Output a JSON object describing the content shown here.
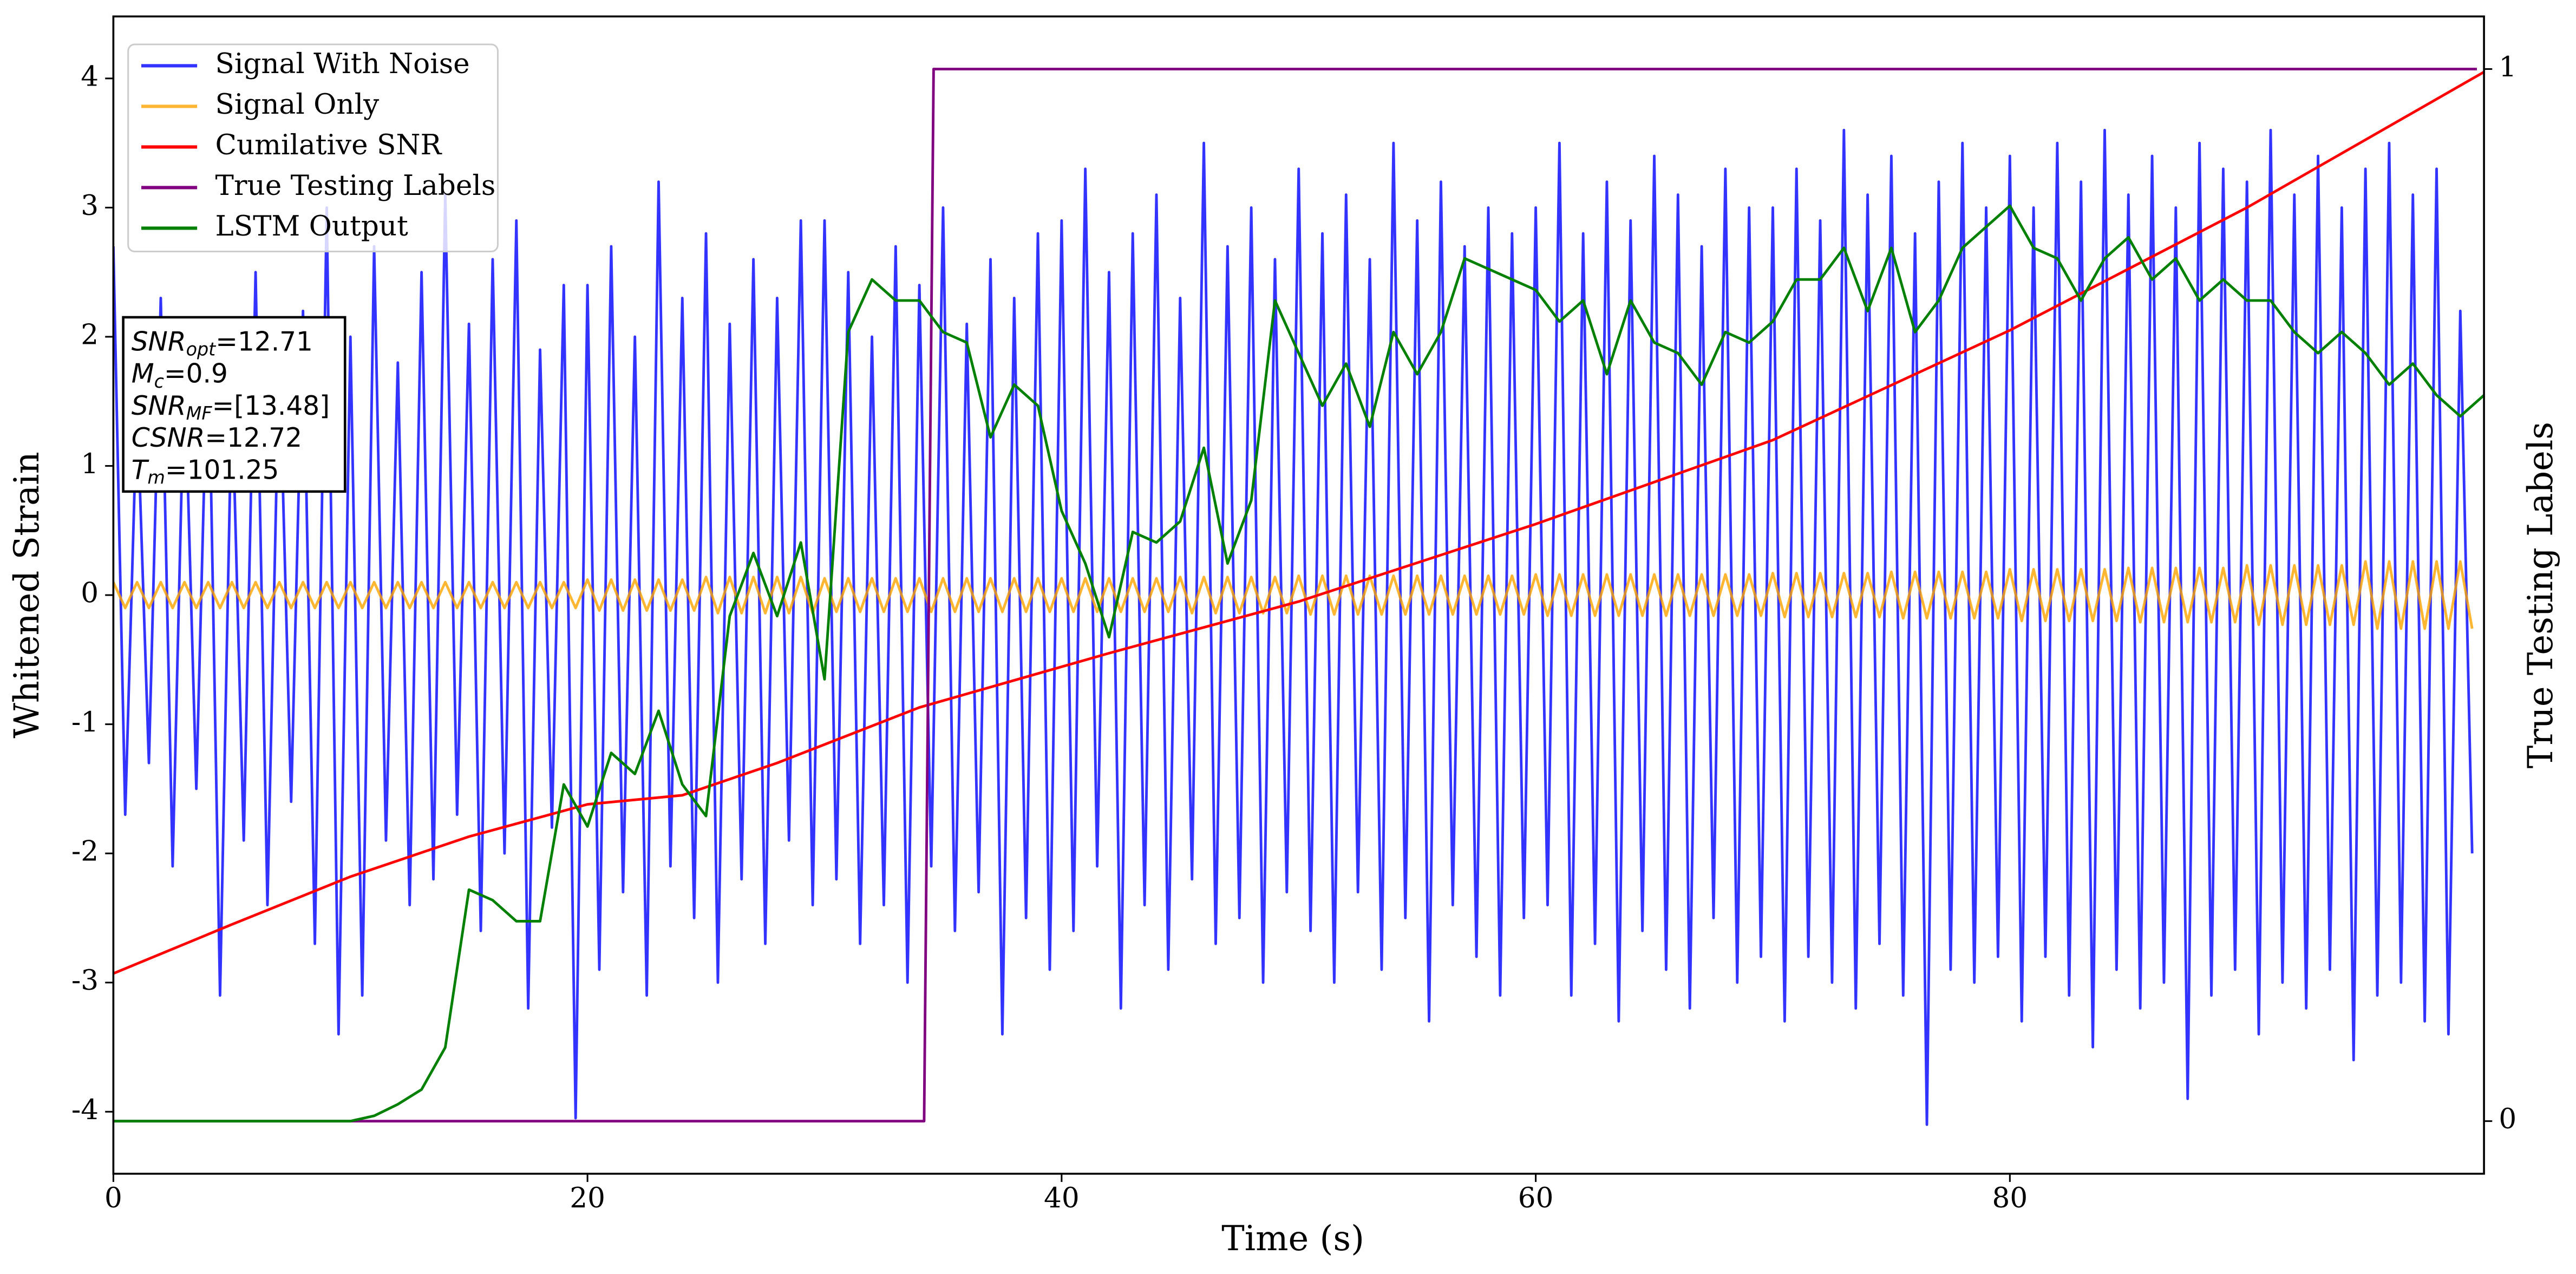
{
  "chart_data": {
    "type": "line",
    "xlabel": "Time (s)",
    "ylabel": "Whitened Strain",
    "y2label": "True Testing Labels",
    "xlim": [
      0,
      100
    ],
    "xticks": [
      0,
      20,
      40,
      60,
      80
    ],
    "ylim": [
      -4.48,
      4.48
    ],
    "yticks": [
      -4,
      -3,
      -2,
      -1,
      0,
      1,
      2,
      3,
      4
    ],
    "y2lim": [
      -0.05,
      1.05
    ],
    "y2ticks": [
      0,
      1
    ],
    "legend": "upper left",
    "annotation": [
      {
        "base": "SNR",
        "sub": "opt",
        "text": "=12.71"
      },
      {
        "base": "M",
        "sub": "c",
        "text": "=0.9"
      },
      {
        "base": "SNR",
        "sub": "MF",
        "text": "=[13.48]"
      },
      {
        "base": "CSNR",
        "text": "=12.72"
      },
      {
        "base": "T",
        "sub": "m",
        "text": "=101.25"
      }
    ],
    "x": [
      0,
      0.5,
      1,
      1.5,
      2,
      2.5,
      3,
      3.5,
      4,
      4.5,
      5,
      5.5,
      6,
      6.5,
      7,
      7.5,
      8,
      8.5,
      9,
      9.5,
      10,
      10.5,
      11,
      11.5,
      12,
      12.5,
      13,
      13.5,
      14,
      14.5,
      15,
      15.5,
      16,
      16.5,
      17,
      17.5,
      18,
      18.5,
      19,
      19.5,
      20,
      20.5,
      21,
      21.5,
      22,
      22.5,
      23,
      23.5,
      24,
      24.5,
      25,
      25.5,
      26,
      26.5,
      27,
      27.5,
      28,
      28.5,
      29,
      29.5,
      30,
      30.5,
      31,
      31.5,
      32,
      32.5,
      33,
      33.5,
      34,
      34.5,
      35,
      35.5,
      36,
      36.5,
      37,
      37.5,
      38,
      38.5,
      39,
      39.5,
      40,
      40.5,
      41,
      41.5,
      42,
      42.5,
      43,
      43.5,
      44,
      44.5,
      45,
      45.5,
      46,
      46.5,
      47,
      47.5,
      48,
      48.5,
      49,
      49.5,
      50,
      50.5,
      51,
      51.5,
      52,
      52.5,
      53,
      53.5,
      54,
      54.5,
      55,
      55.5,
      56,
      56.5,
      57,
      57.5,
      58,
      58.5,
      59,
      59.5,
      60,
      60.5,
      61,
      61.5,
      62,
      62.5,
      63,
      63.5,
      64,
      64.5,
      65,
      65.5,
      66,
      66.5,
      67,
      67.5,
      68,
      68.5,
      69,
      69.5,
      70,
      70.5,
      71,
      71.5,
      72,
      72.5,
      73,
      73.5,
      74,
      74.5,
      75,
      75.5,
      76,
      76.5,
      77,
      77.5,
      78,
      78.5,
      79,
      79.5,
      80,
      80.5,
      81,
      81.5,
      82,
      82.5,
      83,
      83.5,
      84,
      84.5,
      85,
      85.5,
      86,
      86.5,
      87,
      87.5,
      88,
      88.5,
      89,
      89.5,
      90,
      90.5,
      91,
      91.5,
      92,
      92.5,
      93,
      93.5,
      94,
      94.5,
      95,
      95.5,
      96,
      96.5,
      97,
      97.5,
      98,
      98.5,
      99,
      99.5
    ],
    "series": [
      {
        "name": "Signal With Noise",
        "color": "#0000ff",
        "alpha": 0.8,
        "values": [
          2.7,
          -1.7,
          1.5,
          -1.3,
          2.3,
          -2.1,
          1.8,
          -1.5,
          2.1,
          -3.1,
          1.6,
          -1.9,
          2.5,
          -2.4,
          1.9,
          -1.6,
          2.2,
          -2.7,
          3.0,
          -3.4,
          2.0,
          -3.1,
          2.7,
          -1.9,
          1.8,
          -2.4,
          2.5,
          -2.2,
          3.1,
          -1.7,
          2.1,
          -2.6,
          2.6,
          -2.0,
          2.9,
          -3.2,
          1.9,
          -1.8,
          2.4,
          -4.05,
          2.4,
          -2.9,
          2.7,
          -2.3,
          2.0,
          -3.1,
          3.2,
          -2.1,
          2.3,
          -2.5,
          2.8,
          -3.0,
          2.1,
          -2.2,
          2.6,
          -2.7,
          2.3,
          -1.9,
          2.9,
          -2.4,
          2.9,
          -2.2,
          2.5,
          -2.7,
          2.0,
          -2.4,
          2.7,
          -3.0,
          2.4,
          -2.1,
          3.0,
          -2.6,
          2.1,
          -2.3,
          2.6,
          -3.4,
          2.3,
          -2.5,
          2.8,
          -2.9,
          2.9,
          -2.6,
          3.3,
          -2.1,
          2.5,
          -3.2,
          2.8,
          -2.4,
          3.1,
          -2.9,
          2.3,
          -2.2,
          3.5,
          -2.7,
          2.7,
          -2.5,
          3.0,
          -3.0,
          2.6,
          -2.3,
          3.3,
          -2.6,
          2.8,
          -3.0,
          3.1,
          -2.3,
          2.6,
          -2.9,
          3.5,
          -2.5,
          2.9,
          -3.3,
          3.2,
          -2.4,
          2.7,
          -2.8,
          3.0,
          -3.1,
          2.8,
          -2.5,
          3.0,
          -2.4,
          3.5,
          -3.1,
          2.8,
          -2.7,
          3.2,
          -3.3,
          2.9,
          -2.6,
          3.4,
          -2.9,
          3.1,
          -3.2,
          2.7,
          -2.5,
          3.3,
          -3.0,
          3.0,
          -2.8,
          3.0,
          -3.3,
          3.3,
          -2.8,
          2.9,
          -3.0,
          3.6,
          -3.2,
          3.1,
          -2.7,
          3.4,
          -3.1,
          2.8,
          -4.1,
          3.2,
          -2.9,
          3.5,
          -3.0,
          3.0,
          -2.8,
          3.4,
          -3.3,
          3.0,
          -2.8,
          3.5,
          -3.1,
          3.2,
          -3.5,
          3.6,
          -2.9,
          3.1,
          -3.2,
          3.4,
          -3.0,
          3.0,
          -3.9,
          3.5,
          -3.1,
          3.3,
          -2.9,
          3.2,
          -3.4,
          3.6,
          -3.0,
          3.1,
          -3.2,
          3.4,
          -2.9,
          3.0,
          -3.6,
          3.3,
          -3.1,
          3.5,
          -3.0,
          3.1,
          -3.3,
          3.3,
          -3.4,
          2.2,
          -2.0
        ]
      },
      {
        "name": "Signal Only",
        "color": "#ffa500",
        "alpha": 0.8,
        "values": [
          0.1,
          -0.1,
          0.1,
          -0.1,
          0.1,
          -0.1,
          0.1,
          -0.1,
          0.1,
          -0.1,
          0.1,
          -0.1,
          0.1,
          -0.1,
          0.1,
          -0.1,
          0.1,
          -0.1,
          0.1,
          -0.1,
          0.1,
          -0.1,
          0.1,
          -0.1,
          0.1,
          -0.1,
          0.1,
          -0.1,
          0.1,
          -0.1,
          0.1,
          -0.1,
          0.1,
          -0.1,
          0.1,
          -0.1,
          0.1,
          -0.1,
          0.1,
          -0.1,
          0.12,
          -0.12,
          0.12,
          -0.12,
          0.12,
          -0.12,
          0.12,
          -0.12,
          0.12,
          -0.12,
          0.14,
          -0.14,
          0.14,
          -0.14,
          0.14,
          -0.14,
          0.14,
          -0.14,
          0.14,
          -0.14,
          0.13,
          -0.13,
          0.13,
          -0.13,
          0.13,
          -0.13,
          0.13,
          -0.13,
          0.13,
          -0.13,
          0.13,
          -0.13,
          0.13,
          -0.13,
          0.13,
          -0.13,
          0.13,
          -0.13,
          0.13,
          -0.13,
          0.13,
          -0.13,
          0.13,
          -0.13,
          0.13,
          -0.13,
          0.13,
          -0.13,
          0.13,
          -0.13,
          0.14,
          -0.14,
          0.14,
          -0.14,
          0.14,
          -0.14,
          0.14,
          -0.14,
          0.14,
          -0.14,
          0.15,
          -0.15,
          0.15,
          -0.15,
          0.15,
          -0.15,
          0.15,
          -0.15,
          0.15,
          -0.15,
          0.15,
          -0.15,
          0.15,
          -0.15,
          0.15,
          -0.15,
          0.15,
          -0.15,
          0.15,
          -0.15,
          0.16,
          -0.16,
          0.16,
          -0.16,
          0.16,
          -0.16,
          0.16,
          -0.16,
          0.16,
          -0.16,
          0.16,
          -0.16,
          0.16,
          -0.16,
          0.16,
          -0.16,
          0.16,
          -0.16,
          0.16,
          -0.16,
          0.17,
          -0.17,
          0.17,
          -0.17,
          0.17,
          -0.17,
          0.17,
          -0.17,
          0.17,
          -0.17,
          0.18,
          -0.18,
          0.18,
          -0.18,
          0.18,
          -0.18,
          0.18,
          -0.18,
          0.18,
          -0.18,
          0.2,
          -0.2,
          0.2,
          -0.2,
          0.2,
          -0.2,
          0.2,
          -0.2,
          0.2,
          -0.2,
          0.21,
          -0.21,
          0.21,
          -0.21,
          0.21,
          -0.21,
          0.21,
          -0.21,
          0.21,
          -0.21,
          0.23,
          -0.23,
          0.23,
          -0.23,
          0.23,
          -0.23,
          0.23,
          -0.23,
          0.23,
          -0.23,
          0.26,
          -0.26,
          0.26,
          -0.26,
          0.26,
          -0.26,
          0.26,
          -0.26,
          0.26,
          -0.26
        ]
      },
      {
        "name": "Cumilative SNR",
        "color": "#ff0000",
        "x": [
          0,
          5,
          10,
          15,
          20,
          24,
          28,
          34,
          42,
          50,
          60,
          70,
          80,
          90,
          100
        ],
        "values": [
          -2.93,
          -2.55,
          -2.18,
          -1.87,
          -1.62,
          -1.55,
          -1.3,
          -0.87,
          -0.45,
          -0.05,
          0.55,
          1.2,
          2.05,
          3.0,
          4.05
        ]
      },
      {
        "name": "True Testing Labels",
        "color": "#800080",
        "axis": "y2",
        "x": [
          0,
          34.2,
          34.6,
          99.7
        ],
        "values": [
          0,
          0,
          1,
          1
        ]
      },
      {
        "name": "LSTM Output",
        "color": "#008000",
        "axis": "y2",
        "x": [
          0,
          10,
          11,
          12,
          13,
          14,
          15,
          16,
          17,
          18,
          19,
          20,
          21,
          22,
          23,
          24,
          25,
          26,
          27,
          28,
          29,
          30,
          31,
          32,
          33,
          34,
          35,
          36,
          37,
          38,
          39,
          40,
          41,
          42,
          43,
          44,
          45,
          46,
          47,
          48,
          49,
          50,
          51,
          52,
          53,
          54,
          55,
          56,
          57,
          58,
          59,
          60,
          61,
          62,
          63,
          64,
          65,
          66,
          67,
          68,
          69,
          70,
          71,
          72,
          73,
          74,
          75,
          76,
          77,
          78,
          79,
          80,
          81,
          82,
          83,
          84,
          85,
          86,
          87,
          88,
          89,
          90,
          91,
          92,
          93,
          94,
          95,
          96,
          97,
          98,
          99,
          100
        ],
        "values": [
          0,
          0,
          0.005,
          0.016,
          0.03,
          0.07,
          0.22,
          0.21,
          0.19,
          0.19,
          0.32,
          0.28,
          0.35,
          0.33,
          0.39,
          0.32,
          0.29,
          0.48,
          0.54,
          0.48,
          0.55,
          0.42,
          0.75,
          0.8,
          0.78,
          0.78,
          0.75,
          0.74,
          0.65,
          0.7,
          0.68,
          0.58,
          0.53,
          0.46,
          0.56,
          0.55,
          0.57,
          0.64,
          0.53,
          0.59,
          0.78,
          0.73,
          0.68,
          0.72,
          0.66,
          0.75,
          0.71,
          0.75,
          0.82,
          0.81,
          0.8,
          0.79,
          0.76,
          0.78,
          0.71,
          0.78,
          0.74,
          0.73,
          0.7,
          0.75,
          0.74,
          0.76,
          0.8,
          0.8,
          0.83,
          0.77,
          0.83,
          0.75,
          0.78,
          0.83,
          0.85,
          0.87,
          0.83,
          0.82,
          0.78,
          0.82,
          0.84,
          0.8,
          0.82,
          0.78,
          0.8,
          0.78,
          0.78,
          0.75,
          0.73,
          0.75,
          0.73,
          0.7,
          0.72,
          0.69,
          0.67,
          0.69
        ]
      }
    ]
  }
}
